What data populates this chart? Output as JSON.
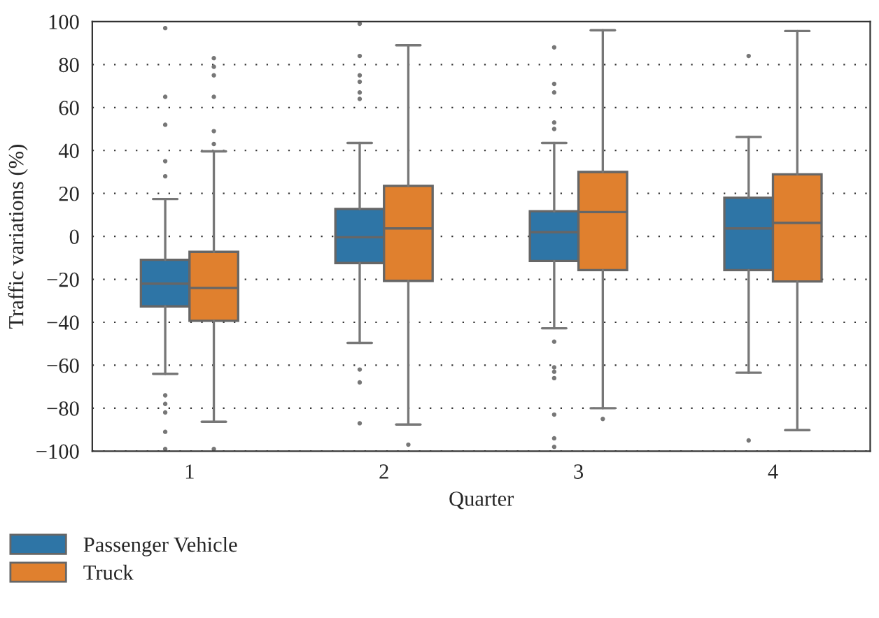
{
  "chart_data": {
    "type": "box",
    "xlabel": "Quarter",
    "ylabel": "Traffic variations (%)",
    "categories": [
      "1",
      "2",
      "3",
      "4"
    ],
    "series": [
      {
        "name": "Passenger Vehicle",
        "color": "#2e75a6",
        "boxes": [
          {
            "low": -64,
            "q1": -32.6,
            "median": -22,
            "q3": -10.9,
            "high": 17.4,
            "outliers": [
              28,
              35,
              52,
              65,
              97,
              -74,
              -78,
              -82,
              -91,
              -99
            ]
          },
          {
            "low": -49.6,
            "q1": -12.4,
            "median": -0.4,
            "q3": 12.8,
            "high": 43.5,
            "outliers": [
              64,
              67,
              72,
              75,
              84,
              99,
              -62,
              -68,
              -87
            ]
          },
          {
            "low": -42.8,
            "q1": -11.5,
            "median": 2,
            "q3": 11.7,
            "high": 43.5,
            "outliers": [
              50,
              53,
              67,
              71,
              88,
              -49,
              -61,
              -63,
              -66,
              -83,
              -94,
              -98
            ]
          },
          {
            "low": -63.5,
            "q1": -15.7,
            "median": 3.7,
            "q3": 18,
            "high": 46.3,
            "outliers": [
              84,
              -95
            ]
          }
        ]
      },
      {
        "name": "Truck",
        "color": "#e0802e",
        "boxes": [
          {
            "low": -86.3,
            "q1": -39.3,
            "median": -24,
            "q3": -7.2,
            "high": 39.6,
            "outliers": [
              43,
              49,
              65,
              75,
              79,
              83,
              -99
            ]
          },
          {
            "low": -87.6,
            "q1": -20.7,
            "median": 3.7,
            "q3": 23.5,
            "high": 89,
            "outliers": [
              -97
            ]
          },
          {
            "low": -80,
            "q1": -15.7,
            "median": 11.3,
            "q3": 30,
            "high": 96,
            "outliers": [
              -85
            ]
          },
          {
            "low": -90.2,
            "q1": -21,
            "median": 6.3,
            "q3": 28.9,
            "high": 95.6
          }
        ]
      }
    ],
    "ylim": [
      -100,
      100
    ],
    "yticks": [
      -100,
      -80,
      -60,
      -40,
      -20,
      0,
      20,
      40,
      60,
      80,
      100
    ],
    "grid": "y",
    "legend": "bottom left"
  }
}
